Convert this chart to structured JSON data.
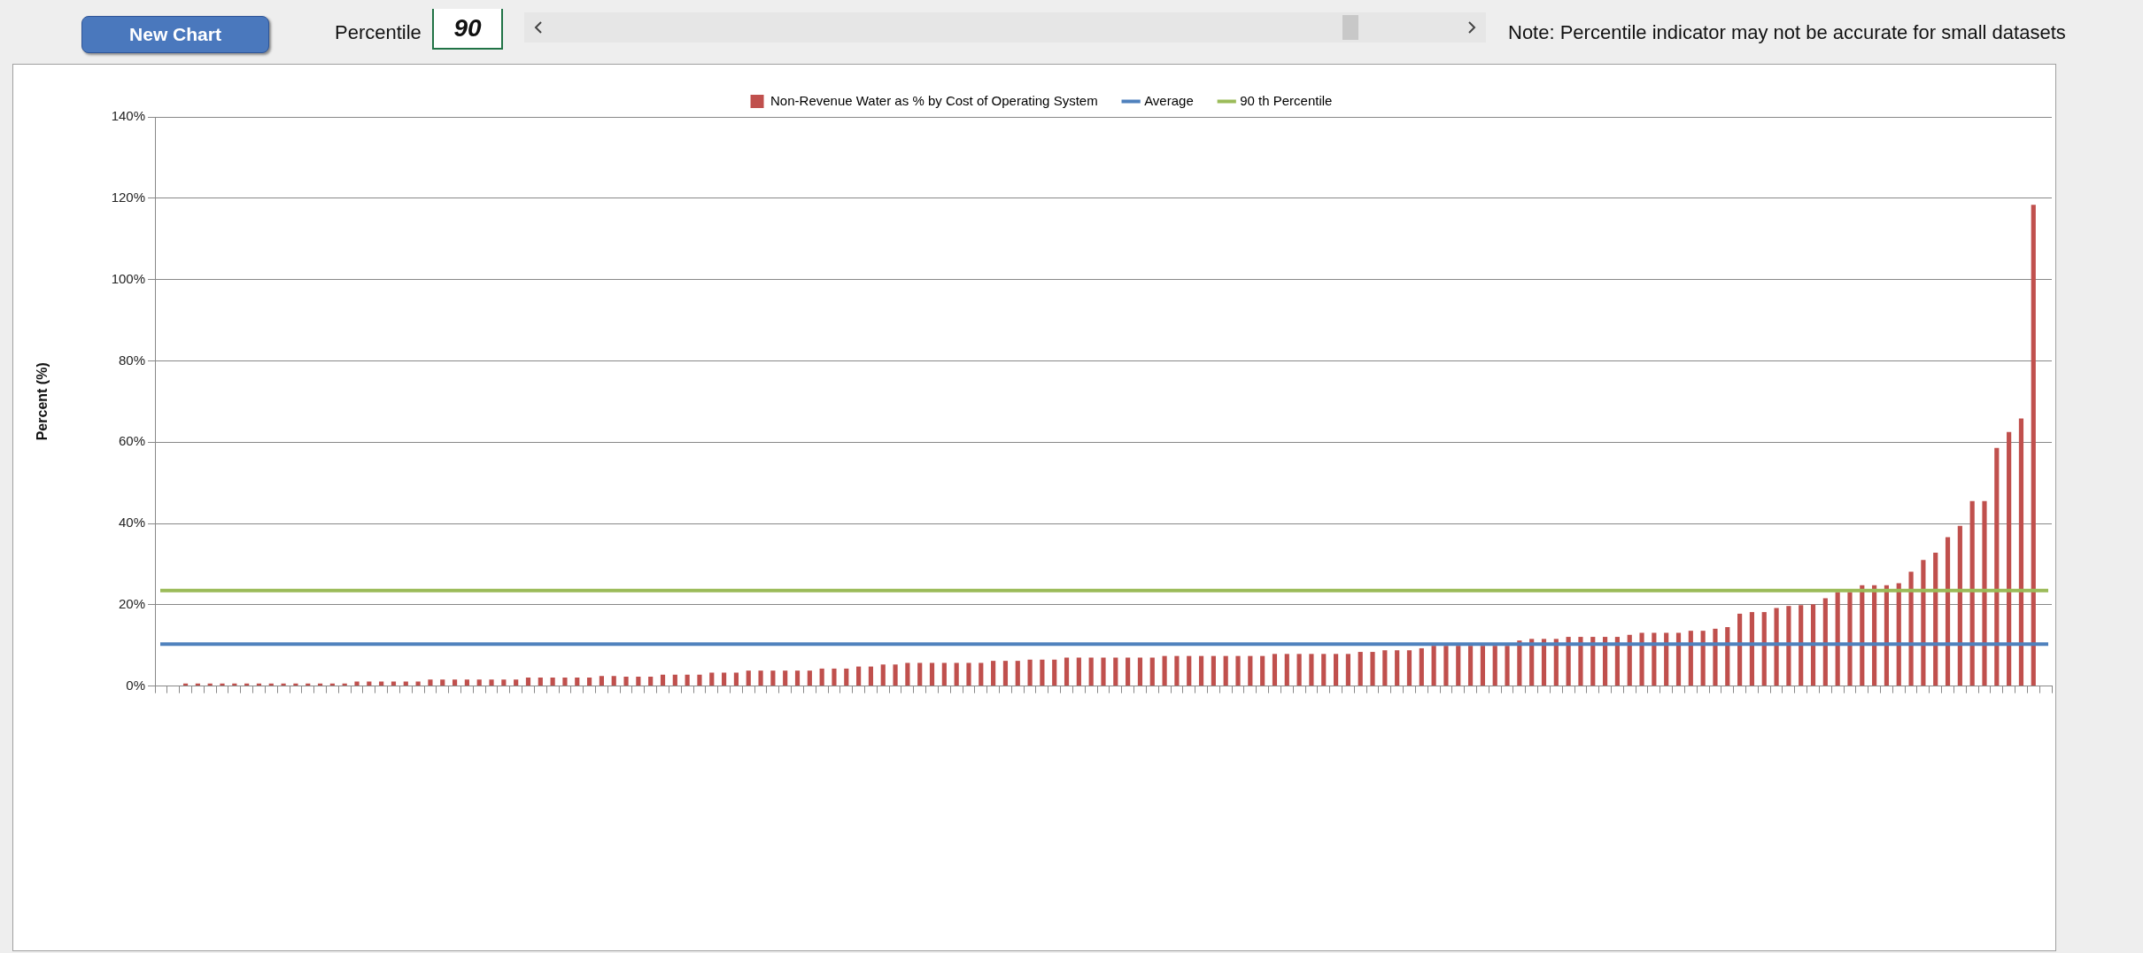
{
  "chart_data": {
    "type": "bar",
    "categories": [
      null,
      null,
      null,
      null,
      null,
      null,
      null,
      null,
      null,
      null,
      null,
      null,
      null,
      null,
      null,
      null,
      null,
      null,
      null,
      null,
      null,
      null,
      null,
      null,
      null,
      null,
      null,
      null,
      null,
      null,
      null,
      null,
      null,
      null,
      null,
      null,
      null,
      null,
      null,
      null,
      null,
      null,
      null,
      null,
      null,
      null,
      null,
      null,
      null,
      null,
      null,
      null,
      null,
      null,
      null,
      null,
      null,
      null,
      null,
      null,
      null,
      null,
      null,
      null,
      null,
      null,
      null,
      null,
      null,
      null,
      null,
      null,
      null,
      null,
      null,
      null,
      null,
      null,
      null,
      null,
      null,
      null,
      null,
      null,
      null,
      null,
      null,
      null,
      null,
      null,
      null,
      null,
      null,
      null,
      null,
      null,
      null,
      null,
      null,
      null,
      null,
      null,
      null,
      null,
      null,
      null,
      null,
      null,
      null,
      null,
      null,
      null,
      null,
      null,
      null,
      null,
      null,
      null,
      null,
      null,
      null,
      null,
      null,
      null,
      null,
      null,
      null,
      null,
      null,
      null,
      null,
      null,
      null,
      null,
      null,
      null,
      null,
      null,
      null,
      null,
      null,
      null,
      null,
      null,
      null,
      null,
      null,
      null,
      null,
      null,
      null,
      null,
      null,
      null,
      null
    ],
    "series": [
      {
        "name": "Non-Revenue Water as % by Cost of Operating System",
        "color": "#c0504d",
        "values": [
          0,
          0,
          0.6,
          0.6,
          0.6,
          0.6,
          0.6,
          0.6,
          0.6,
          0.6,
          0.6,
          0.6,
          0.6,
          0.6,
          0.6,
          0.6,
          1.1,
          1.1,
          1.1,
          1.1,
          1.1,
          1.1,
          1.6,
          1.6,
          1.6,
          1.6,
          1.6,
          1.6,
          1.6,
          1.6,
          2.1,
          2.1,
          2.1,
          2.1,
          2.1,
          2.1,
          2.5,
          2.5,
          2.3,
          2.3,
          2.3,
          2.8,
          2.8,
          2.8,
          2.8,
          3.3,
          3.3,
          3.3,
          3.8,
          3.8,
          3.8,
          3.8,
          3.8,
          3.8,
          4.3,
          4.3,
          4.3,
          4.8,
          4.8,
          5.3,
          5.3,
          5.7,
          5.7,
          5.7,
          5.7,
          5.7,
          5.7,
          5.7,
          6.2,
          6.2,
          6.2,
          6.5,
          6.5,
          6.5,
          7.0,
          7.0,
          7.0,
          7.0,
          7.0,
          7.0,
          7.0,
          7.0,
          7.4,
          7.4,
          7.4,
          7.4,
          7.4,
          7.4,
          7.4,
          7.4,
          7.4,
          7.9,
          7.9,
          7.9,
          7.9,
          7.9,
          7.9,
          7.9,
          8.4,
          8.4,
          8.8,
          8.8,
          8.8,
          9.3,
          9.9,
          9.9,
          9.9,
          9.9,
          9.9,
          9.9,
          9.9,
          11.2,
          11.6,
          11.6,
          11.6,
          12.1,
          12.1,
          12.1,
          12.1,
          12.1,
          12.6,
          13.1,
          13.1,
          13.1,
          13.1,
          13.6,
          13.6,
          14.1,
          14.5,
          17.8,
          18.2,
          18.2,
          19.2,
          19.7,
          19.9,
          20.1,
          21.6,
          23.1,
          23.1,
          24.8,
          24.8,
          24.8,
          25.3,
          28.1,
          31.0,
          32.8,
          36.6,
          39.4,
          45.5,
          45.5,
          58.6,
          62.5,
          65.8,
          118.4,
          0
        ]
      }
    ],
    "ylabel": "Percent (%)",
    "ylim": [
      0,
      140
    ],
    "yticks": [
      {
        "value": 0,
        "label": "0%"
      },
      {
        "value": 20,
        "label": "20%"
      },
      {
        "value": 40,
        "label": "40%"
      },
      {
        "value": 60,
        "label": "60%"
      },
      {
        "value": 80,
        "label": "80%"
      },
      {
        "value": 100,
        "label": "100%"
      },
      {
        "value": 120,
        "label": "120%"
      },
      {
        "value": 140,
        "label": "140%"
      }
    ],
    "ref_lines": [
      {
        "axis": "y",
        "value": 10.3,
        "label": "Average",
        "color": "#4f81bd"
      },
      {
        "axis": "y",
        "value": 23.5,
        "label": "90 th Percentile",
        "color": "#9bbb59"
      }
    ],
    "grid": "y",
    "legend": "top",
    "annotations": [
      "New Chart",
      "Percentile",
      "90",
      "Note: Percentile indicator may not be accurate for small datasets"
    ]
  }
}
